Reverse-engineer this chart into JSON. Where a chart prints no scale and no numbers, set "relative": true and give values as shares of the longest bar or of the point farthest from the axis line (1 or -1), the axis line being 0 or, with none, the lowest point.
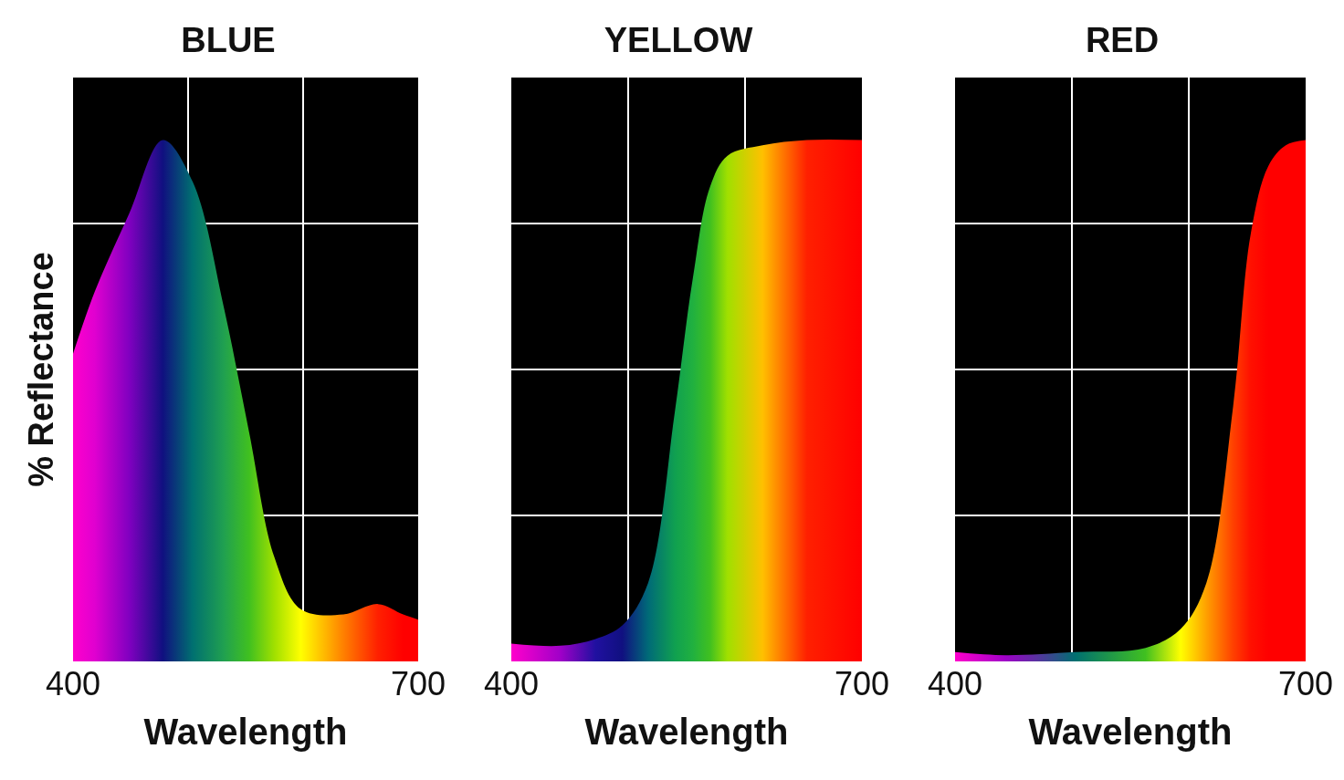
{
  "chart_data": [
    {
      "type": "area",
      "title": "BLUE",
      "xlabel": "Wavelength",
      "ylabel": "% Reflectance",
      "relative": true,
      "xlim": [
        400,
        700
      ],
      "xticks": [
        {
          "value": 400,
          "label": "400"
        },
        {
          "value": 500,
          "label": null
        },
        {
          "value": 600,
          "label": null
        },
        {
          "value": 700,
          "label": "700"
        }
      ],
      "grid": true,
      "tick_labels": "x",
      "marker": "none",
      "x": [
        400,
        419,
        449,
        478,
        504,
        531,
        553,
        575,
        598,
        635,
        665,
        687,
        700
      ],
      "series": [
        {
          "values": [
            0.59,
            0.71,
            0.86,
            1,
            0.92,
            0.68,
            0.44,
            0.2,
            0.1,
            0.09,
            0.11,
            0.09,
            0.08
          ],
          "colors": [
            "#ff00cc",
            "#e000d0",
            "#8000c0",
            "#101080",
            "#007070",
            "#20a050",
            "#40c020",
            "#a0e000",
            "#ffff00",
            "#ff8000",
            "#ff2000",
            "#ff0000",
            "#ff0000"
          ]
        }
      ]
    },
    {
      "type": "area",
      "title": "YELLOW",
      "xlabel": "Wavelength",
      "relative": true,
      "xlim": [
        400,
        700
      ],
      "xticks": [
        {
          "value": 400,
          "label": "400"
        },
        {
          "value": 500,
          "label": null
        },
        {
          "value": 600,
          "label": null
        },
        {
          "value": 700,
          "label": "700"
        }
      ],
      "grid": true,
      "tick_labels": "x",
      "marker": "none",
      "x": [
        400,
        442,
        472,
        495,
        517,
        540,
        555,
        570,
        585,
        615,
        653,
        700
      ],
      "series": [
        {
          "values": [
            0.034,
            0.03,
            0.043,
            0.069,
            0.15,
            0.48,
            0.73,
            0.91,
            0.97,
            0.99,
            1,
            1
          ],
          "colors": [
            "#ff00cc",
            "#a000c8",
            "#2010a0",
            "#101080",
            "#006a78",
            "#10a050",
            "#20b040",
            "#40c020",
            "#a0e000",
            "#ffc000",
            "#ff2000",
            "#ff0000"
          ]
        }
      ]
    },
    {
      "type": "area",
      "title": "RED",
      "xlabel": "Wavelength",
      "relative": true,
      "xlim": [
        400,
        700
      ],
      "xticks": [
        {
          "value": 400,
          "label": "400"
        },
        {
          "value": 500,
          "label": null
        },
        {
          "value": 600,
          "label": null
        },
        {
          "value": 700,
          "label": "700"
        }
      ],
      "grid": true,
      "tick_labels": "x",
      "marker": "none",
      "x": [
        400,
        443,
        503,
        563,
        593,
        615,
        638,
        653,
        668,
        683,
        700
      ],
      "series": [
        {
          "values": [
            0.018,
            0.012,
            0.018,
            0.026,
            0.062,
            0.15,
            0.49,
            0.82,
            0.95,
            0.99,
            1
          ],
          "colors": [
            "#ff00cc",
            "#a000c8",
            "#007070",
            "#40c020",
            "#ffff00",
            "#ffa000",
            "#ff4000",
            "#ff1000",
            "#ff0000",
            "#ff0000",
            "#ff0000"
          ]
        }
      ]
    }
  ]
}
